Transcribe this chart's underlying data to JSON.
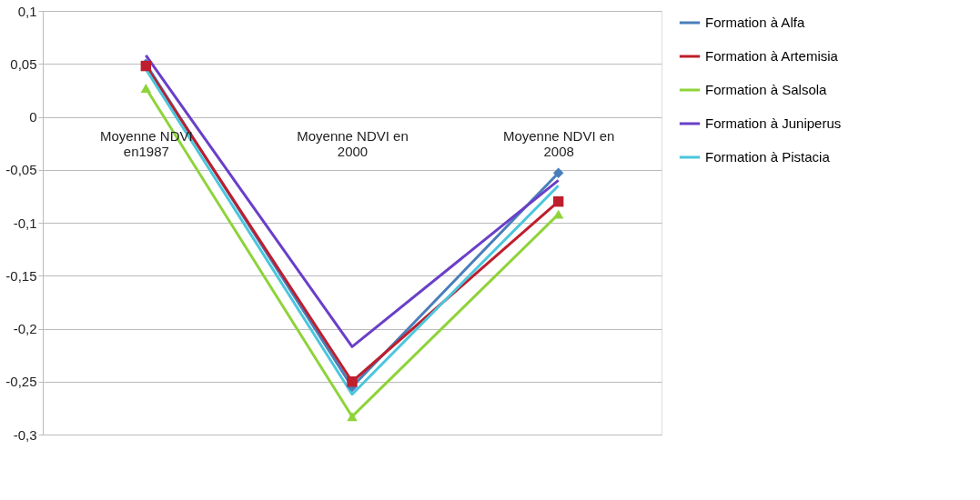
{
  "chart_data": {
    "type": "line",
    "categories": [
      "Moyenne NDVI en1987",
      "Moyenne NDVI en 2000",
      "Moyenne NDVI en 2008"
    ],
    "ylim": [
      -0.3,
      0.1
    ],
    "yticks": [
      {
        "value": -0.3,
        "label": "-0,3"
      },
      {
        "value": -0.25,
        "label": "-0,25"
      },
      {
        "value": -0.2,
        "label": "-0,2"
      },
      {
        "value": -0.15,
        "label": "-0,15"
      },
      {
        "value": -0.1,
        "label": "-0,1"
      },
      {
        "value": -0.05,
        "label": "-0,05"
      },
      {
        "value": 0,
        "label": "0"
      },
      {
        "value": 0.05,
        "label": "0,05"
      },
      {
        "value": 0.1,
        "label": "0,1"
      }
    ],
    "grid": "y",
    "legend": "right",
    "series": [
      {
        "name": "Formation à Alfa",
        "color": "#4a7ebb",
        "marker": "diamond",
        "values": [
          0.05,
          -0.255,
          -0.053
        ]
      },
      {
        "name": "Formation à Artemisia",
        "color": "#be1e2d",
        "marker": "square",
        "values": [
          0.048,
          -0.25,
          -0.08
        ]
      },
      {
        "name": "Formation à Salsola",
        "color": "#8ed33a",
        "marker": "triangle",
        "values": [
          0.027,
          -0.283,
          -0.092
        ]
      },
      {
        "name": "Formation à Juniperus",
        "color": "#6a3fc8",
        "marker": "none",
        "values": [
          0.058,
          -0.217,
          -0.06
        ]
      },
      {
        "name": "Formation à Pistacia",
        "color": "#4bc6dc",
        "marker": "none",
        "values": [
          0.045,
          -0.262,
          -0.065
        ]
      }
    ]
  }
}
